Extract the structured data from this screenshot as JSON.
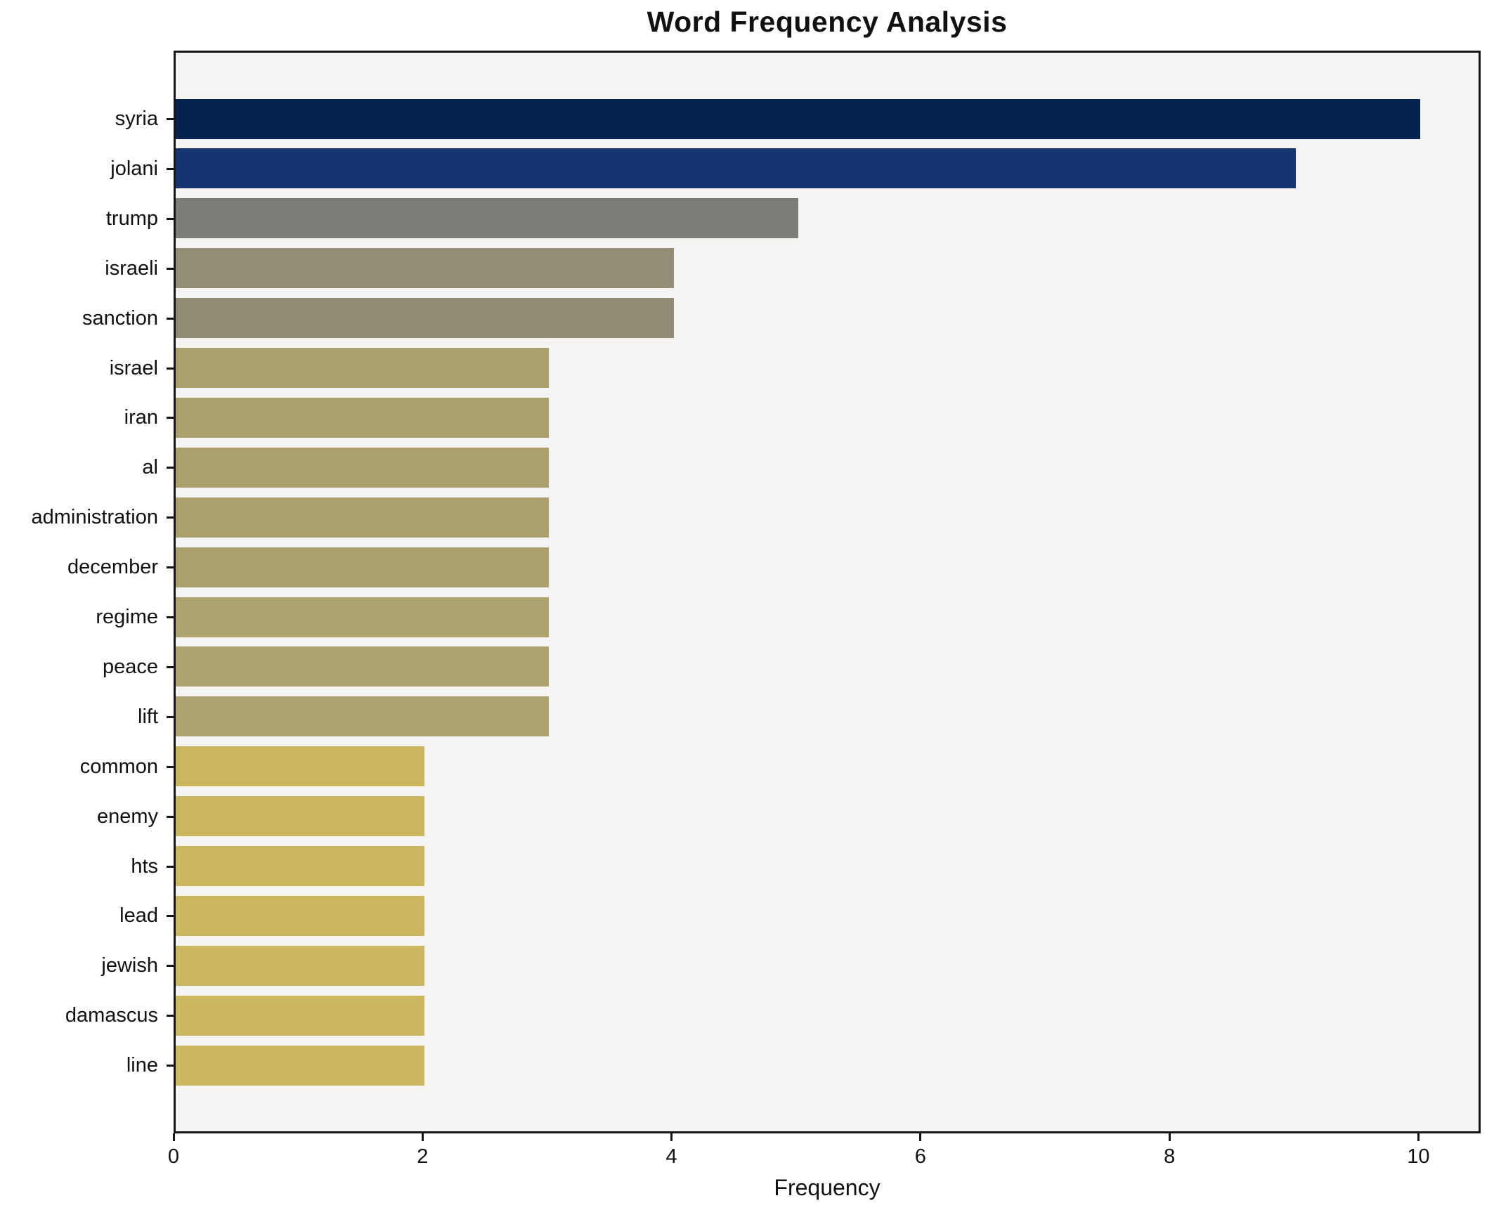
{
  "chart_data": {
    "type": "bar",
    "orientation": "horizontal",
    "title": "Word Frequency Analysis",
    "xlabel": "Frequency",
    "ylabel": "",
    "categories": [
      "syria",
      "jolani",
      "trump",
      "israeli",
      "sanction",
      "israel",
      "iran",
      "al",
      "administration",
      "december",
      "regime",
      "peace",
      "lift",
      "common",
      "enemy",
      "hts",
      "lead",
      "jewish",
      "damascus",
      "line"
    ],
    "values": [
      10,
      9,
      5,
      4,
      4,
      3,
      3,
      3,
      3,
      3,
      3,
      3,
      3,
      2,
      2,
      2,
      2,
      2,
      2,
      2
    ],
    "bar_colors": [
      "#04234e",
      "#143570",
      "#7d7c78",
      "#948e77",
      "#918b74",
      "#aca16d",
      "#aca16d",
      "#aca16d",
      "#aca16d",
      "#aca16d",
      "#aea36e",
      "#aea36e",
      "#aea36e",
      "#c9b65d",
      "#c9b65d",
      "#cab75e",
      "#cab75e",
      "#cab75e",
      "#cbb85f",
      "#cbb85f"
    ],
    "xlim": [
      0,
      10.5
    ],
    "xticks": [
      "0",
      "2",
      "4",
      "6",
      "8",
      "10"
    ],
    "xtick_values": [
      0,
      2,
      4,
      6,
      8,
      10
    ],
    "grid": false,
    "legend": null,
    "plot_bg": "#f5f4f2",
    "fig_bg": "#ffffff",
    "spine_color": "#161616"
  }
}
